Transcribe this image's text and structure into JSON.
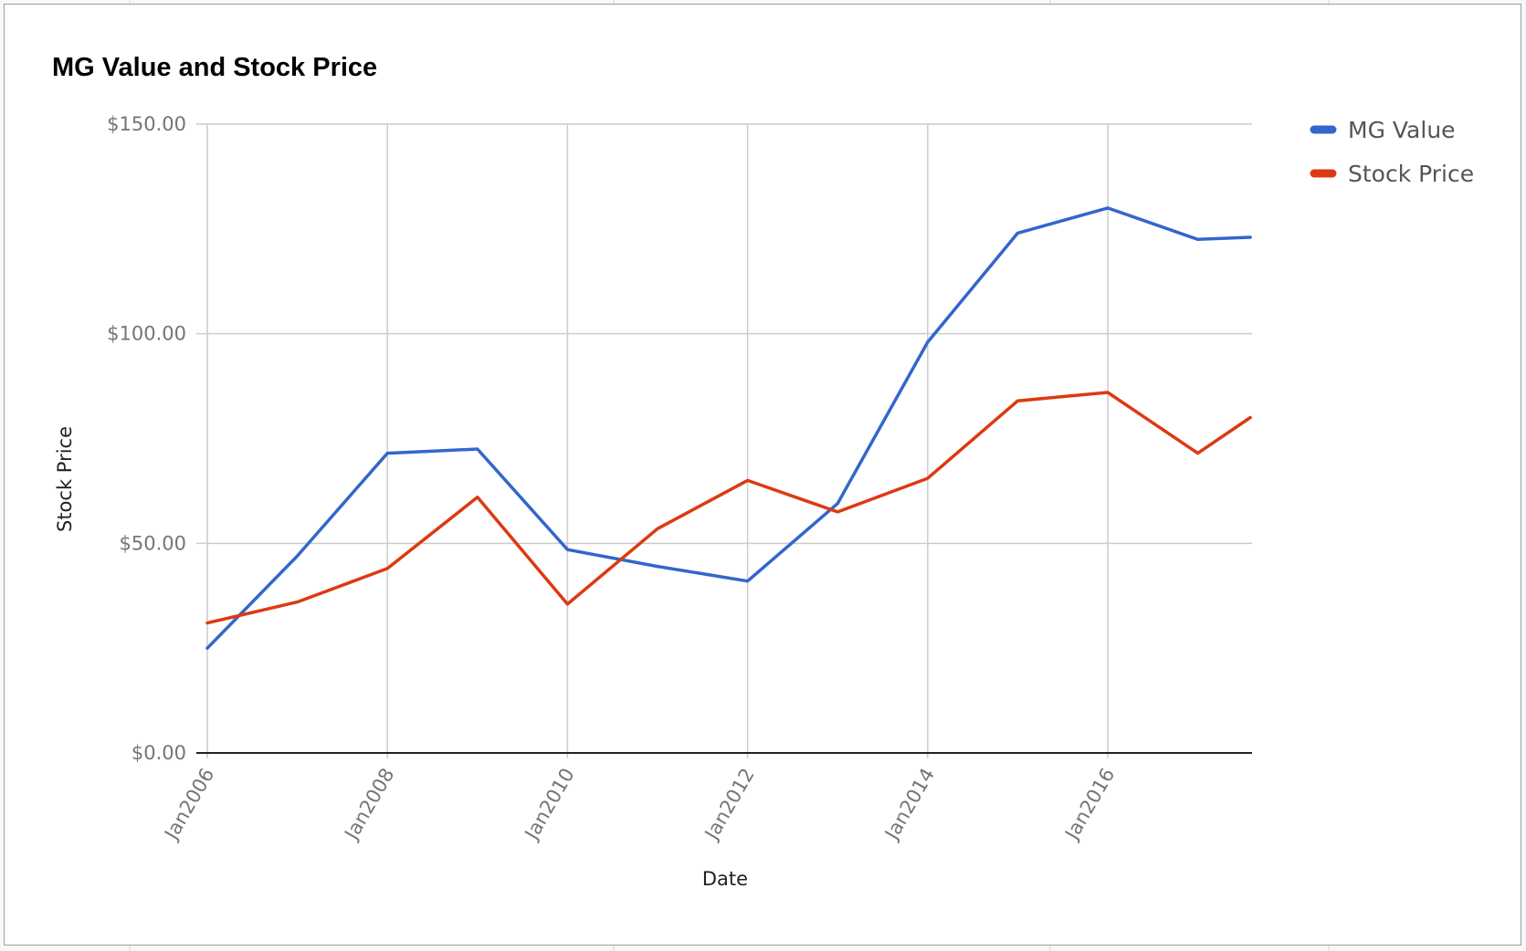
{
  "chart_data": {
    "type": "line",
    "title": "MG Value and Stock Price",
    "xlabel": "Date",
    "ylabel": "Stock Price",
    "x": [
      "2006-01",
      "2007-01",
      "2008-01",
      "2009-01",
      "2010-01",
      "2011-01",
      "2012-01",
      "2013-01",
      "2014-01",
      "2015-01",
      "2016-01",
      "2017-01",
      "2017-08"
    ],
    "x_ticks": [
      "Jan2006",
      "Jan2008",
      "Jan2010",
      "Jan2012",
      "Jan2014",
      "Jan2016"
    ],
    "ylim": [
      0,
      150
    ],
    "y_ticks": [
      "$0.00",
      "$50.00",
      "$100.00",
      "$150.00"
    ],
    "y_tick_values": [
      0,
      50,
      100,
      150
    ],
    "series": [
      {
        "name": "MG Value",
        "color": "#3366cc",
        "values": [
          25,
          47,
          71.5,
          72.5,
          48.5,
          44.5,
          41,
          59.5,
          98,
          124,
          130,
          122.5,
          123
        ]
      },
      {
        "name": "Stock Price",
        "color": "#dc3912",
        "values": [
          31,
          36,
          44,
          61,
          35.5,
          53.5,
          65,
          57.5,
          65.5,
          84,
          86,
          71.5,
          80
        ]
      }
    ],
    "grid": true,
    "legend_position": "right"
  }
}
